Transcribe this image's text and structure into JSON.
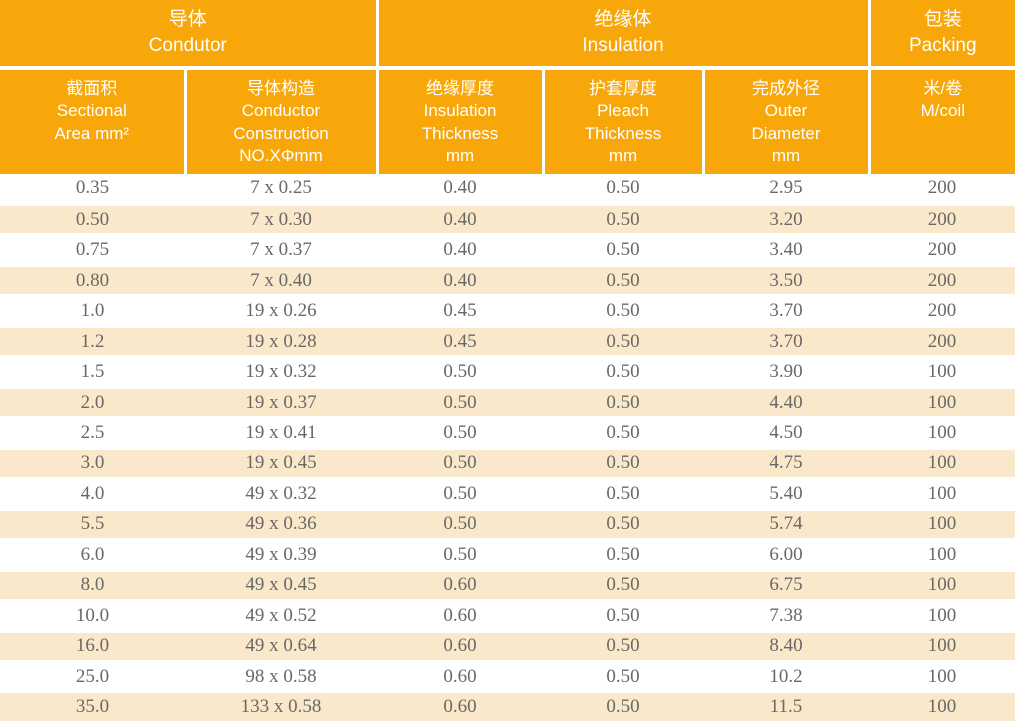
{
  "colors": {
    "header_bg": "#F7A70A",
    "header_text": "#FFFFFF",
    "shaded_row_bg": "#FAE8CB",
    "data_text": "#6A6866"
  },
  "table": {
    "groups": [
      {
        "lines": [
          "导体",
          "Condutor"
        ],
        "span": 2
      },
      {
        "lines": [
          "绝缘体",
          "Insulation"
        ],
        "span": 3
      },
      {
        "lines": [
          "包装",
          "Packing"
        ],
        "span": 1
      }
    ],
    "columns": [
      {
        "lines": [
          "截面积",
          "Sectional",
          "Area mm²"
        ]
      },
      {
        "lines": [
          "导体构造",
          "Conductor",
          "Construction",
          "NO.XΦmm"
        ]
      },
      {
        "lines": [
          "绝缘厚度",
          "Insulation",
          "Thickness",
          "mm"
        ]
      },
      {
        "lines": [
          "护套厚度",
          "Pleach",
          "Thickness",
          "mm"
        ]
      },
      {
        "lines": [
          "完成外径",
          "Outer",
          "Diameter",
          "mm"
        ]
      },
      {
        "lines": [
          "米/卷",
          "M/coil"
        ]
      }
    ],
    "rows": [
      [
        "0.35",
        "7 x 0.25",
        "0.40",
        "0.50",
        "2.95",
        "200"
      ],
      [
        "0.50",
        "7 x 0.30",
        "0.40",
        "0.50",
        "3.20",
        "200"
      ],
      [
        "0.75",
        "7 x 0.37",
        "0.40",
        "0.50",
        "3.40",
        "200"
      ],
      [
        "0.80",
        "7 x 0.40",
        "0.40",
        "0.50",
        "3.50",
        "200"
      ],
      [
        "1.0",
        "19 x 0.26",
        "0.45",
        "0.50",
        "3.70",
        "200"
      ],
      [
        "1.2",
        "19 x 0.28",
        "0.45",
        "0.50",
        "3.70",
        "200"
      ],
      [
        "1.5",
        "19 x 0.32",
        "0.50",
        "0.50",
        "3.90",
        "100"
      ],
      [
        "2.0",
        "19 x 0.37",
        "0.50",
        "0.50",
        "4.40",
        "100"
      ],
      [
        "2.5",
        "19 x 0.41",
        "0.50",
        "0.50",
        "4.50",
        "100"
      ],
      [
        "3.0",
        "19 x 0.45",
        "0.50",
        "0.50",
        "4.75",
        "100"
      ],
      [
        "4.0",
        "49 x 0.32",
        "0.50",
        "0.50",
        "5.40",
        "100"
      ],
      [
        "5.5",
        "49 x 0.36",
        "0.50",
        "0.50",
        "5.74",
        "100"
      ],
      [
        "6.0",
        "49 x 0.39",
        "0.50",
        "0.50",
        "6.00",
        "100"
      ],
      [
        "8.0",
        "49 x 0.45",
        "0.60",
        "0.50",
        "6.75",
        "100"
      ],
      [
        "10.0",
        "49 x 0.52",
        "0.60",
        "0.50",
        "7.38",
        "100"
      ],
      [
        "16.0",
        "49 x 0.64",
        "0.60",
        "0.50",
        "8.40",
        "100"
      ],
      [
        "25.0",
        "98 x 0.58",
        "0.60",
        "0.50",
        "10.2",
        "100"
      ],
      [
        "35.0",
        "133 x 0.58",
        "0.60",
        "0.50",
        "11.5",
        "100"
      ]
    ]
  }
}
